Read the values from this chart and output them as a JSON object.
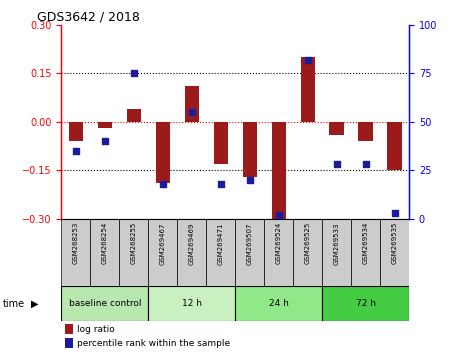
{
  "title": "GDS3642 / 2018",
  "samples": [
    "GSM268253",
    "GSM268254",
    "GSM268255",
    "GSM269467",
    "GSM269469",
    "GSM269471",
    "GSM269507",
    "GSM269524",
    "GSM269525",
    "GSM269533",
    "GSM269534",
    "GSM269535"
  ],
  "log_ratio": [
    -0.06,
    -0.02,
    0.04,
    -0.19,
    0.11,
    -0.13,
    -0.17,
    -0.3,
    0.2,
    -0.04,
    -0.06,
    -0.15
  ],
  "percentile": [
    35,
    40,
    75,
    18,
    55,
    18,
    20,
    2,
    82,
    28,
    28,
    3
  ],
  "ylim_left": [
    -0.3,
    0.3
  ],
  "ylim_right": [
    0,
    100
  ],
  "yticks_left": [
    -0.3,
    -0.15,
    0,
    0.15,
    0.3
  ],
  "yticks_right": [
    0,
    25,
    50,
    75,
    100
  ],
  "bar_color": "#9B1B1B",
  "dot_color": "#1B1B9B",
  "sample_box_color": "#cccccc",
  "time_label": "time",
  "legend_bar_label": "log ratio",
  "legend_dot_label": "percentile rank within the sample",
  "groups": [
    {
      "label": "baseline control",
      "start": 0,
      "end": 3,
      "color": "#b8e8b0"
    },
    {
      "label": "12 h",
      "start": 3,
      "end": 6,
      "color": "#c8f0c0"
    },
    {
      "label": "24 h",
      "start": 6,
      "end": 9,
      "color": "#90e888"
    },
    {
      "label": "72 h",
      "start": 9,
      "end": 12,
      "color": "#44cc44"
    }
  ]
}
